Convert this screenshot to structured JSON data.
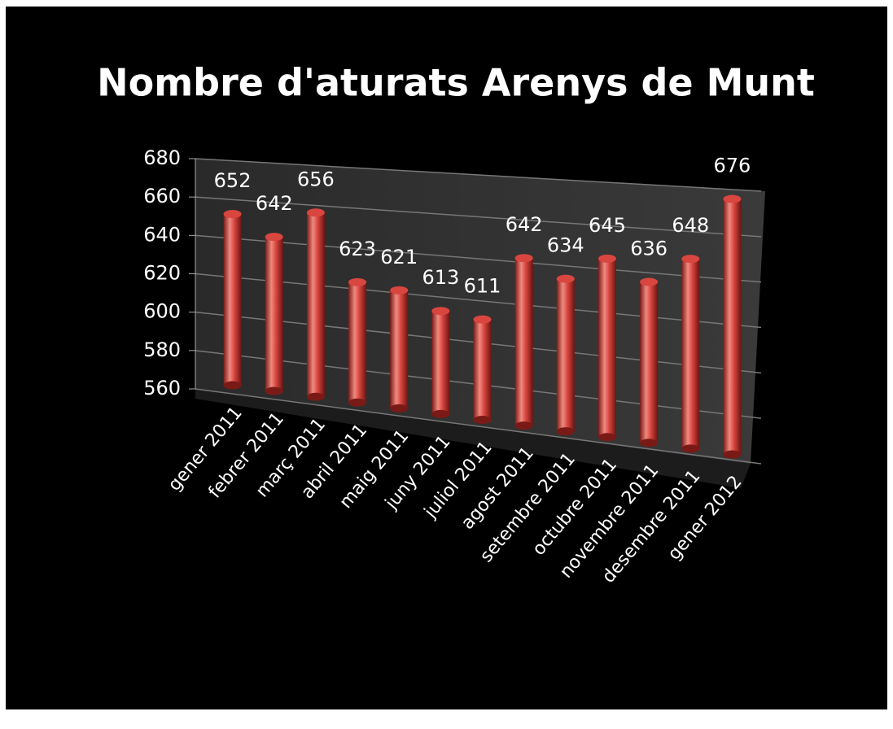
{
  "chart_data": {
    "type": "bar",
    "title": "Nombre d'aturats Arenys de Munt",
    "categories": [
      "gener 2011",
      "febrer 2011",
      "març 2011",
      "abril 2011",
      "maig 2011",
      "juny 2011",
      "juliol 2011",
      "agost 2011",
      "setembre 2011",
      "octubre 2011",
      "novembre 2011",
      "desembre 2011",
      "gener 2012"
    ],
    "values": [
      652,
      642,
      656,
      623,
      621,
      613,
      611,
      642,
      634,
      645,
      636,
      648,
      676
    ],
    "color": "#d9463f",
    "ylim": [
      560,
      680
    ],
    "yticks": [
      560,
      580,
      600,
      620,
      640,
      660,
      680
    ],
    "grid": true
  }
}
